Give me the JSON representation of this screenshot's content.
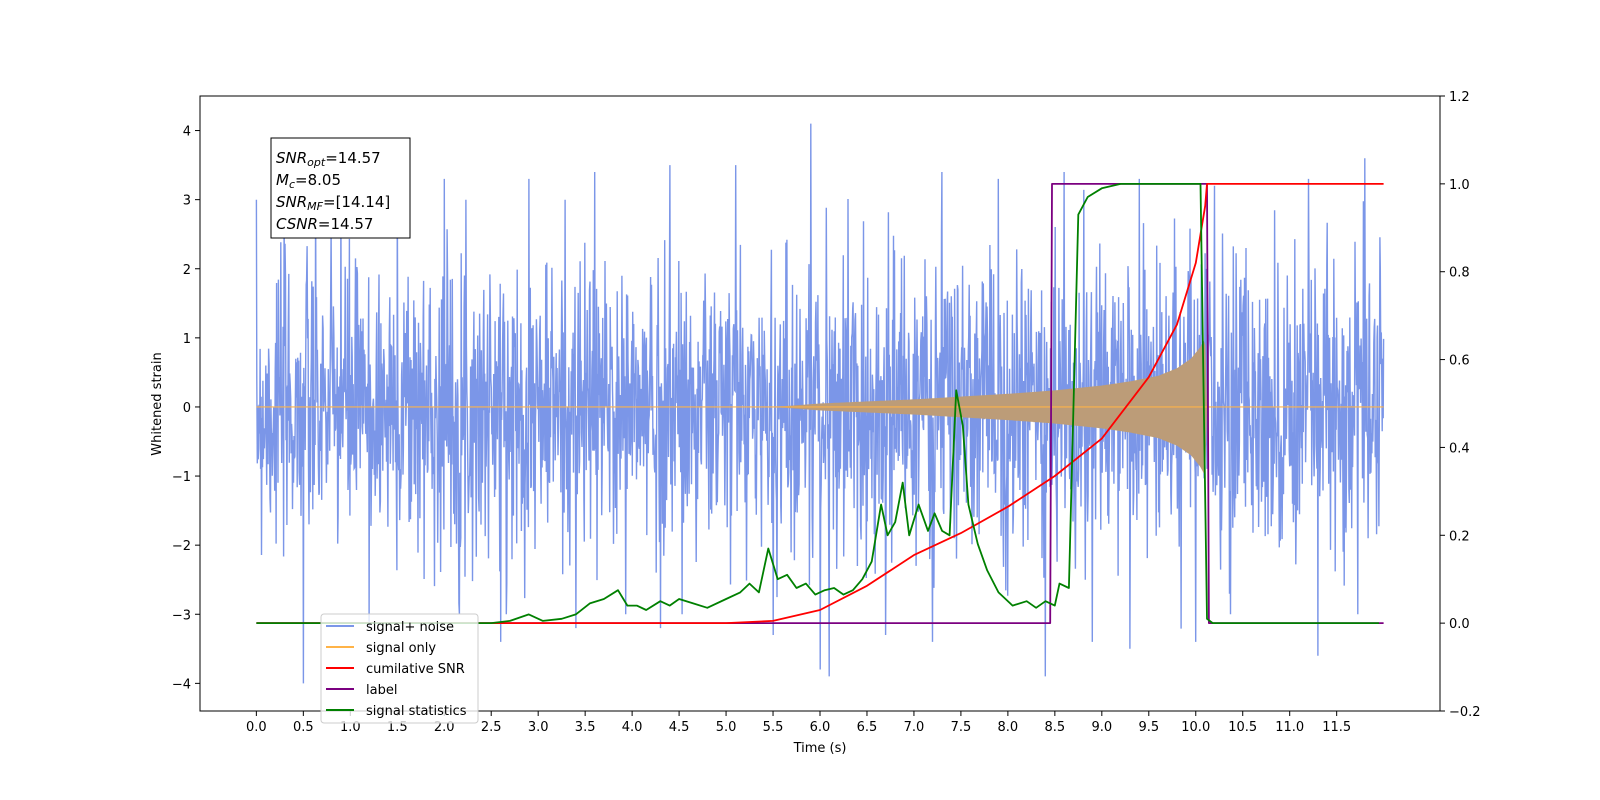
{
  "chart_data": {
    "type": "line",
    "xlabel": "Time (s)",
    "ylabel": "Whitened strain",
    "xlim": [
      -0.6,
      12.6
    ],
    "ylim": [
      -4.4,
      4.5
    ],
    "y2lim": [
      -0.2,
      1.2
    ],
    "grid": false,
    "x_ticks": [
      0.0,
      0.5,
      1.0,
      1.5,
      2.0,
      2.5,
      3.0,
      3.5,
      4.0,
      4.5,
      5.0,
      5.5,
      6.0,
      6.5,
      7.0,
      7.5,
      8.0,
      8.5,
      9.0,
      9.5,
      10.0,
      10.5,
      11.0,
      11.5
    ],
    "x_tick_labels": [
      "0.0",
      "0.5",
      "1.0",
      "1.5",
      "2.0",
      "2.5",
      "3.0",
      "3.5",
      "4.0",
      "4.5",
      "5.0",
      "5.5",
      "6.0",
      "6.5",
      "7.0",
      "7.5",
      "8.0",
      "8.5",
      "9.0",
      "9.5",
      "10.0",
      "10.5",
      "11.0",
      "11.5"
    ],
    "y_ticks": [
      4,
      3,
      2,
      1,
      0,
      -1,
      -2,
      -3,
      -4
    ],
    "y_tick_labels": [
      "4",
      "3",
      "2",
      "1",
      "0",
      "−1",
      "−2",
      "−3",
      "−4"
    ],
    "y2_ticks": [
      1.2,
      1.0,
      0.8,
      0.6,
      0.4,
      0.2,
      0.0,
      -0.2
    ],
    "y2_tick_labels": [
      "1.2",
      "1.0",
      "0.8",
      "0.6",
      "0.4",
      "0.2",
      "0.0",
      "−0.2"
    ],
    "legend_position": "lower-left",
    "annotation": {
      "lines": [
        {
          "label": "SNR",
          "sub": "opt",
          "value": "=14.57"
        },
        {
          "label": "M",
          "sub": "c",
          "value": "=8.05"
        },
        {
          "label": "SNR",
          "sub": "MF",
          "value": "=[14.14]"
        },
        {
          "label": "CSNR",
          "sub": "",
          "value": "=14.57"
        }
      ]
    },
    "series": [
      {
        "name": "signal+ noise",
        "axis": "left",
        "color": "#7b96e8",
        "x_range": [
          0.0,
          12.0
        ],
        "summary": "dense noise trace, mostly between -2.5 and 2.5",
        "peaks_x": [
          0.9,
          1.5,
          2.0,
          2.9,
          3.6,
          4.4,
          5.1,
          5.9,
          6.7,
          7.3,
          7.9,
          8.6,
          9.4,
          10.2,
          11.2,
          11.8
        ],
        "peaks_y": [
          3.1,
          3.2,
          3.3,
          3.3,
          3.4,
          3.5,
          3.5,
          4.1,
          3.6,
          3.4,
          3.3,
          3.4,
          3.3,
          3.2,
          3.3,
          3.6
        ],
        "troughs_x": [
          0.5,
          1.2,
          2.6,
          3.4,
          4.3,
          5.5,
          6.0,
          6.1,
          6.7,
          7.2,
          8.4,
          8.9,
          9.3,
          10.0,
          11.3
        ],
        "troughs_y": [
          -4.0,
          -3.2,
          -3.4,
          -3.2,
          -3.2,
          -3.3,
          -3.8,
          -3.9,
          -3.3,
          -3.4,
          -3.9,
          -3.4,
          -3.5,
          -3.4,
          -3.6
        ]
      },
      {
        "name": "signal only",
        "axis": "left",
        "color": "#ffb347",
        "x_range": [
          0.0,
          12.0
        ],
        "envelope_x": [
          5.5,
          6.0,
          6.5,
          7.0,
          7.5,
          8.0,
          8.5,
          9.0,
          9.3,
          9.6,
          9.8,
          9.95,
          10.05,
          10.1,
          10.11,
          10.12,
          12.0
        ],
        "envelope_y": [
          0.0,
          0.05,
          0.08,
          0.11,
          0.15,
          0.19,
          0.24,
          0.31,
          0.37,
          0.45,
          0.56,
          0.7,
          0.87,
          1.0,
          0.5,
          0.0,
          0.0
        ]
      },
      {
        "name": "cumilative SNR",
        "axis": "right",
        "color": "#ff0000",
        "x": [
          0.0,
          5.0,
          5.5,
          6.0,
          6.5,
          7.0,
          7.5,
          8.0,
          8.5,
          9.0,
          9.5,
          9.8,
          10.0,
          10.1,
          10.12,
          12.0
        ],
        "y": [
          0.0,
          0.0,
          0.005,
          0.03,
          0.085,
          0.155,
          0.205,
          0.265,
          0.335,
          0.42,
          0.56,
          0.68,
          0.82,
          0.95,
          1.0,
          1.0
        ]
      },
      {
        "name": "label",
        "axis": "right",
        "color": "#7b0080",
        "x": [
          0.0,
          8.45,
          8.47,
          10.12,
          10.14,
          12.0
        ],
        "y": [
          0.0,
          0.0,
          1.0,
          1.0,
          0.0,
          0.0
        ]
      },
      {
        "name": "signal statistics",
        "axis": "right",
        "color": "#008000",
        "x": [
          0.0,
          2.5,
          2.7,
          2.9,
          3.05,
          3.25,
          3.4,
          3.55,
          3.7,
          3.85,
          3.95,
          4.05,
          4.15,
          4.3,
          4.4,
          4.5,
          4.65,
          4.8,
          5.0,
          5.15,
          5.25,
          5.35,
          5.45,
          5.55,
          5.65,
          5.75,
          5.85,
          5.95,
          6.05,
          6.15,
          6.25,
          6.35,
          6.45,
          6.55,
          6.65,
          6.72,
          6.8,
          6.88,
          6.95,
          7.05,
          7.15,
          7.22,
          7.3,
          7.38,
          7.45,
          7.52,
          7.58,
          7.68,
          7.78,
          7.9,
          8.05,
          8.2,
          8.3,
          8.4,
          8.5,
          8.55,
          8.65,
          8.75,
          8.85,
          9.0,
          9.2,
          9.4,
          9.6,
          10.05,
          10.12,
          10.18,
          11.95
        ],
        "y": [
          0.0,
          0.0,
          0.005,
          0.02,
          0.005,
          0.01,
          0.02,
          0.045,
          0.055,
          0.075,
          0.04,
          0.04,
          0.03,
          0.05,
          0.04,
          0.055,
          0.045,
          0.035,
          0.055,
          0.07,
          0.09,
          0.07,
          0.17,
          0.1,
          0.11,
          0.08,
          0.09,
          0.065,
          0.075,
          0.08,
          0.065,
          0.075,
          0.1,
          0.14,
          0.27,
          0.2,
          0.23,
          0.32,
          0.2,
          0.27,
          0.21,
          0.25,
          0.21,
          0.2,
          0.53,
          0.45,
          0.27,
          0.18,
          0.12,
          0.07,
          0.04,
          0.05,
          0.035,
          0.05,
          0.04,
          0.09,
          0.08,
          0.93,
          0.97,
          0.99,
          1.0,
          1.0,
          1.0,
          1.0,
          0.01,
          0.0,
          0.0
        ]
      }
    ]
  }
}
